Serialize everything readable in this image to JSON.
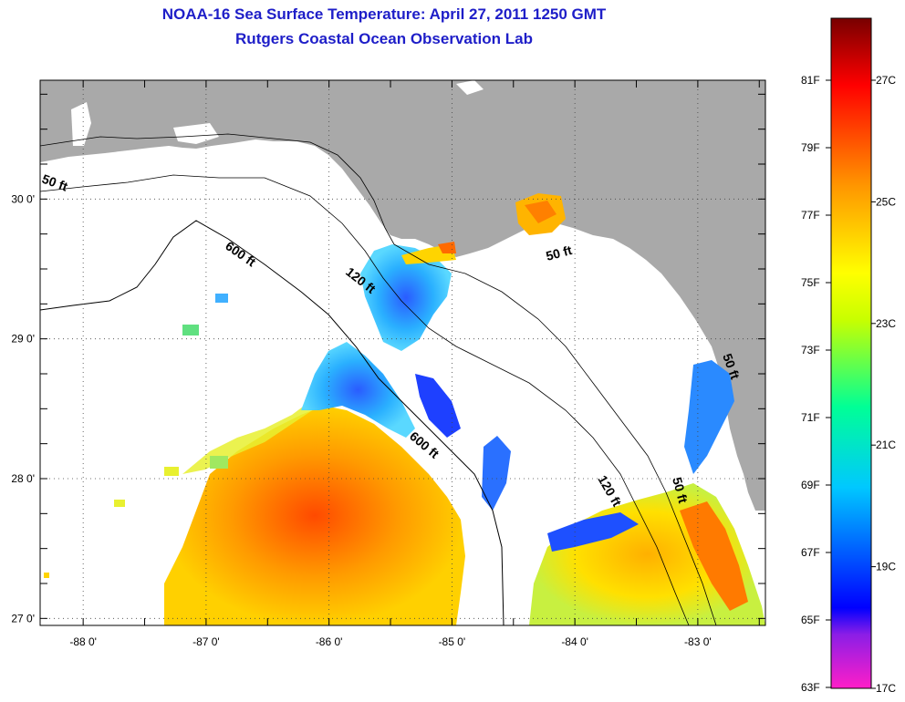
{
  "title": {
    "line1": "NOAA-16 Sea Surface Temperature:  April 27, 2011 1250 GMT",
    "line2": "Rutgers Coastal Ocean Observation Lab"
  },
  "map": {
    "lon_ticks": [
      {
        "lon": -88,
        "label": "-88 0'"
      },
      {
        "lon": -87,
        "label": "-87 0'"
      },
      {
        "lon": -86,
        "label": "-86 0'"
      },
      {
        "lon": -85,
        "label": "-85 0'"
      },
      {
        "lon": -84,
        "label": "-84 0'"
      },
      {
        "lon": -83,
        "label": "-83 0'"
      }
    ],
    "lat_ticks": [
      {
        "lat": 27,
        "label": "27 0'"
      },
      {
        "lat": 28,
        "label": "28 0'"
      },
      {
        "lat": 29,
        "label": "29 0'"
      },
      {
        "lat": 30,
        "label": "30 0'"
      }
    ],
    "lon_range": [
      -88.35,
      -82.45
    ],
    "lat_range": [
      26.95,
      30.85
    ],
    "contour_labels": [
      "50 ft",
      "600 ft",
      "120 ft",
      "50 ft",
      "600 ft",
      "120 ft",
      "50 ft",
      "50 ft"
    ],
    "colors": {
      "land": "#a9a9a9",
      "no_data": "#ffffff",
      "contour": "#000000"
    }
  },
  "colorbar": {
    "stops": [
      "#ff1ec8",
      "#8c1ee6",
      "#0000ff",
      "#00c8ff",
      "#00ff96",
      "#c8ff00",
      "#ffff00",
      "#ff9600",
      "#ff0000",
      "#780000"
    ],
    "fahrenheit_labels": [
      "81F",
      "79F",
      "77F",
      "75F",
      "73F",
      "71F",
      "69F",
      "67F",
      "65F",
      "63F"
    ],
    "celsius_labels": [
      "27C",
      "25C",
      "23C",
      "21C",
      "19C",
      "17C"
    ]
  }
}
